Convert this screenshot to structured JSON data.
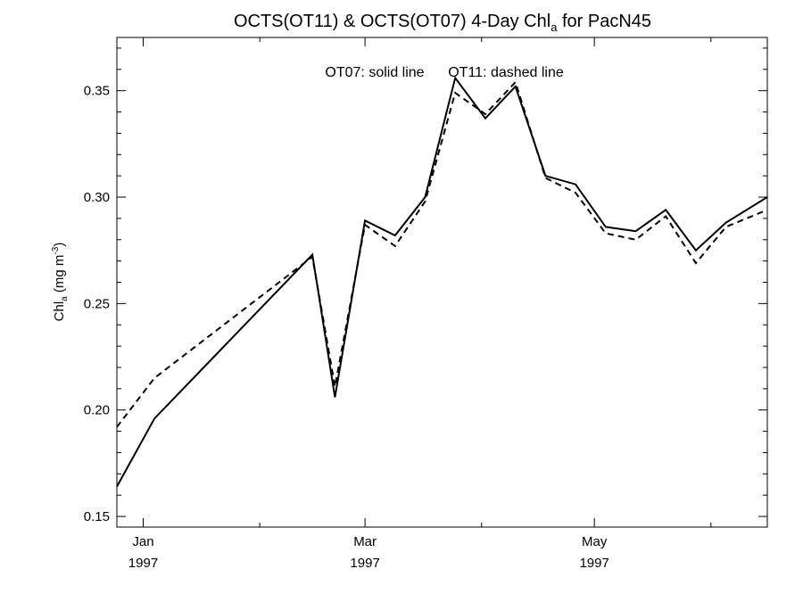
{
  "chart_data": {
    "type": "line",
    "title": {
      "prefix": "OCTS(OT11) & OCTS(OT07) 4-Day Chl",
      "subscript": "a",
      "suffix": " for PacN45"
    },
    "ylabel": {
      "prefix": "Chl",
      "subscript": "a",
      "middle": " (mg m",
      "superscript": "-3",
      "suffix": ")"
    },
    "annotations": {
      "solid": "OT07: solid line",
      "dashed": "OT11: dashed line"
    },
    "ylim": [
      0.145,
      0.375
    ],
    "xlim": [
      "1996-12-25",
      "1997-06-16"
    ],
    "y_ticks": [
      0.15,
      0.2,
      0.25,
      0.3,
      0.35
    ],
    "y_tick_labels": [
      "0.15",
      "0.20",
      "0.25",
      "0.30",
      "0.35"
    ],
    "x_ticks": [
      {
        "date": "1997-01-01",
        "month": "Jan",
        "year": "1997"
      },
      {
        "date": "1997-03-01",
        "month": "Mar",
        "year": "1997"
      },
      {
        "date": "1997-05-01",
        "month": "May",
        "year": "1997"
      }
    ],
    "x_minor_ticks": [
      "1997-02-01",
      "1997-04-01",
      "1997-06-01"
    ],
    "series": [
      {
        "name": "OT07",
        "style": "solid",
        "points": [
          {
            "x": "1996-12-25",
            "y": 0.164
          },
          {
            "x": "1997-01-04",
            "y": 0.196
          },
          {
            "x": "1997-02-15",
            "y": 0.273
          },
          {
            "x": "1997-02-21",
            "y": 0.206
          },
          {
            "x": "1997-03-01",
            "y": 0.289
          },
          {
            "x": "1997-03-09",
            "y": 0.282
          },
          {
            "x": "1997-03-17",
            "y": 0.3
          },
          {
            "x": "1997-03-25",
            "y": 0.356
          },
          {
            "x": "1997-04-02",
            "y": 0.337
          },
          {
            "x": "1997-04-10",
            "y": 0.352
          },
          {
            "x": "1997-04-18",
            "y": 0.31
          },
          {
            "x": "1997-04-26",
            "y": 0.306
          },
          {
            "x": "1997-05-04",
            "y": 0.286
          },
          {
            "x": "1997-05-12",
            "y": 0.284
          },
          {
            "x": "1997-05-20",
            "y": 0.294
          },
          {
            "x": "1997-05-28",
            "y": 0.275
          },
          {
            "x": "1997-06-05",
            "y": 0.288
          },
          {
            "x": "1997-06-16",
            "y": 0.3
          }
        ]
      },
      {
        "name": "OT11",
        "style": "dashed",
        "points": [
          {
            "x": "1996-12-25",
            "y": 0.192
          },
          {
            "x": "1997-01-04",
            "y": 0.215
          },
          {
            "x": "1997-02-15",
            "y": 0.272
          },
          {
            "x": "1997-02-21",
            "y": 0.211
          },
          {
            "x": "1997-03-01",
            "y": 0.287
          },
          {
            "x": "1997-03-09",
            "y": 0.277
          },
          {
            "x": "1997-03-17",
            "y": 0.298
          },
          {
            "x": "1997-03-25",
            "y": 0.349
          },
          {
            "x": "1997-04-02",
            "y": 0.339
          },
          {
            "x": "1997-04-10",
            "y": 0.354
          },
          {
            "x": "1997-04-18",
            "y": 0.309
          },
          {
            "x": "1997-04-26",
            "y": 0.302
          },
          {
            "x": "1997-05-04",
            "y": 0.283
          },
          {
            "x": "1997-05-12",
            "y": 0.28
          },
          {
            "x": "1997-05-20",
            "y": 0.291
          },
          {
            "x": "1997-05-28",
            "y": 0.269
          },
          {
            "x": "1997-06-05",
            "y": 0.286
          },
          {
            "x": "1997-06-16",
            "y": 0.294
          }
        ]
      }
    ],
    "grid": false,
    "legend": "none"
  }
}
